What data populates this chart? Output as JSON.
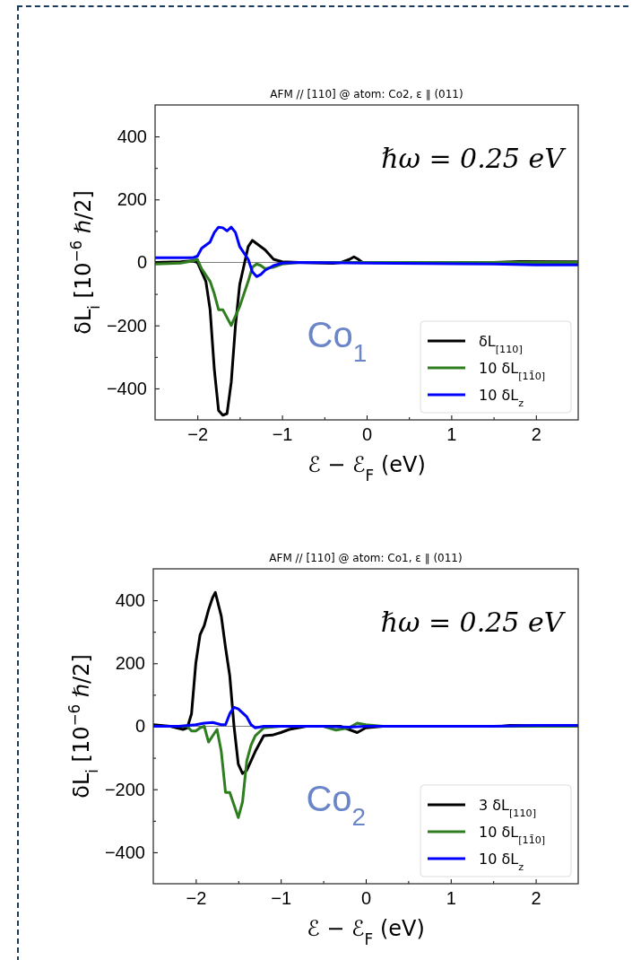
{
  "chart_data": [
    {
      "type": "line",
      "title": "AFM // [110] @ atom: Co2, ε ∥ (011)",
      "xlabel": "ℰ − ℰ$_{F}$ (eV)",
      "ylabel": "δL$_{i}$  [10$^{−6}$ ℏ/2]",
      "xlim": [
        -2.5,
        2.5
      ],
      "ylim": [
        -500,
        500
      ],
      "xticks": [
        {
          "value": -2,
          "label": "−2"
        },
        {
          "value": -1.5,
          "label": null
        },
        {
          "value": -1,
          "label": "−1"
        },
        {
          "value": -0.5,
          "label": null
        },
        0,
        {
          "value": 0.5,
          "label": null
        },
        1,
        {
          "value": 1.5,
          "label": null
        },
        2
      ],
      "yticks": [
        {
          "value": -400,
          "label": "−400"
        },
        {
          "value": -300,
          "label": null
        },
        {
          "value": -200,
          "label": "−200"
        },
        {
          "value": -100,
          "label": null
        },
        0,
        {
          "value": 100,
          "label": null
        },
        200,
        {
          "value": 300,
          "label": null
        },
        400
      ],
      "grid": false,
      "legend": "bottom right",
      "line_style": "solid",
      "marker": "none",
      "ref_lines": [
        {
          "axis": "y",
          "value": 0,
          "color": "#808080"
        }
      ],
      "annotations": [
        "ℏω = 0.25 eV",
        "Co$_{1}$"
      ],
      "series": [
        {
          "name": "δL$_{[110]}$",
          "color": "#000000",
          "x": [
            -2.5,
            -2.2,
            -2.05,
            -2.0,
            -1.9,
            -1.85,
            -1.8,
            -1.75,
            -1.7,
            -1.65,
            -1.6,
            -1.55,
            -1.5,
            -1.45,
            -1.4,
            -1.35,
            -1.3,
            -1.2,
            -1.1,
            -1.0,
            -0.8,
            -0.4,
            -0.3,
            -0.2,
            -0.15,
            -0.1,
            -0.05,
            0,
            1.5,
            1.8,
            2.5
          ],
          "values": [
            0,
            2,
            5,
            0,
            -60,
            -150,
            -340,
            -470,
            -485,
            -480,
            -380,
            -200,
            -70,
            -10,
            50,
            70,
            60,
            40,
            10,
            2,
            0,
            -3,
            0,
            10,
            18,
            10,
            0,
            0,
            0,
            3,
            2
          ]
        },
        {
          "name": "10 δL$_{[11̄0]}$",
          "color": "#2e7d1f",
          "x": [
            -2.5,
            -2.2,
            -2.05,
            -2.0,
            -1.95,
            -1.85,
            -1.8,
            -1.75,
            -1.7,
            -1.6,
            -1.5,
            -1.4,
            -1.35,
            -1.3,
            -1.25,
            -1.2,
            -1.1,
            -1.0,
            -0.8,
            0,
            2.5
          ],
          "values": [
            -5,
            -2,
            5,
            10,
            -20,
            -60,
            -100,
            -150,
            -150,
            -200,
            -140,
            -60,
            -15,
            -5,
            -10,
            -20,
            -15,
            -5,
            0,
            0,
            0
          ]
        },
        {
          "name": "10 δL$_{z}$",
          "color": "#0000ff",
          "x": [
            -2.5,
            -2.05,
            -2.0,
            -1.95,
            -1.85,
            -1.8,
            -1.75,
            -1.7,
            -1.65,
            -1.6,
            -1.55,
            -1.5,
            -1.4,
            -1.35,
            -1.3,
            -1.25,
            -1.2,
            -1.1,
            -1.0,
            -0.8,
            0,
            1.5,
            2.0,
            2.5
          ],
          "values": [
            15,
            15,
            20,
            45,
            65,
            95,
            112,
            110,
            100,
            112,
            95,
            50,
            10,
            -30,
            -45,
            -38,
            -25,
            -10,
            -2,
            0,
            -2,
            -5,
            -8,
            -8
          ]
        }
      ]
    },
    {
      "type": "line",
      "title": "AFM // [110] @ atom: Co1, ε ∥ (011)",
      "xlabel": "ℰ − ℰ$_{F}$ (eV)",
      "ylabel": "δL$_{i}$  [10$^{−6}$ ℏ/2]",
      "xlim": [
        -2.5,
        2.5
      ],
      "ylim": [
        -500,
        500
      ],
      "xticks": [
        {
          "value": -2,
          "label": "−2"
        },
        {
          "value": -1.5,
          "label": null
        },
        {
          "value": -1,
          "label": "−1"
        },
        {
          "value": -0.5,
          "label": null
        },
        0,
        {
          "value": 0.5,
          "label": null
        },
        1,
        {
          "value": 1.5,
          "label": null
        },
        2
      ],
      "yticks": [
        {
          "value": -400,
          "label": "−400"
        },
        {
          "value": -300,
          "label": null
        },
        {
          "value": -200,
          "label": "−200"
        },
        {
          "value": -100,
          "label": null
        },
        0,
        {
          "value": 100,
          "label": null
        },
        200,
        {
          "value": 300,
          "label": null
        },
        400
      ],
      "grid": false,
      "legend": "bottom right",
      "line_style": "solid",
      "marker": "none",
      "ref_lines": [
        {
          "axis": "y",
          "value": 0,
          "color": "#808080"
        }
      ],
      "annotations": [
        "ℏω = 0.25 eV",
        "Co$_{2}$"
      ],
      "series": [
        {
          "name": "3 δL$_{[110]}$",
          "color": "#000000",
          "x": [
            -2.5,
            -2.3,
            -2.15,
            -2.1,
            -2.05,
            -2.0,
            -1.95,
            -1.9,
            -1.85,
            -1.8,
            -1.77,
            -1.7,
            -1.65,
            -1.6,
            -1.55,
            -1.5,
            -1.45,
            -1.4,
            -1.3,
            -1.2,
            -1.1,
            -1.0,
            -0.9,
            -0.7,
            -0.3,
            -0.1,
            0,
            0.2,
            1.6,
            1.7,
            2.5
          ],
          "values": [
            5,
            0,
            -10,
            -5,
            40,
            200,
            290,
            320,
            370,
            410,
            425,
            350,
            250,
            160,
            0,
            -120,
            -150,
            -140,
            -80,
            -30,
            -28,
            -20,
            -10,
            0,
            0,
            -20,
            -5,
            0,
            0,
            3,
            0
          ]
        },
        {
          "name": "10 δL$_{[11̄0]}$",
          "color": "#2e7d1f",
          "x": [
            -2.5,
            -2.1,
            -2.05,
            -2.0,
            -1.95,
            -1.9,
            -1.85,
            -1.8,
            -1.75,
            -1.7,
            -1.65,
            -1.6,
            -1.55,
            -1.5,
            -1.45,
            -1.4,
            -1.35,
            -1.3,
            -1.2,
            -1.0,
            -0.5,
            -0.35,
            -0.2,
            -0.1,
            0,
            0.2,
            2.5
          ],
          "values": [
            0,
            0,
            -15,
            -15,
            -5,
            0,
            -50,
            -30,
            -10,
            -80,
            -210,
            -210,
            -250,
            -290,
            -240,
            -110,
            -60,
            -30,
            -5,
            0,
            0,
            -12,
            -5,
            10,
            5,
            0,
            0
          ]
        },
        {
          "name": "10 δL$_{z}$",
          "color": "#0000ff",
          "x": [
            -2.5,
            -2.2,
            -2.0,
            -1.9,
            -1.8,
            -1.7,
            -1.65,
            -1.6,
            -1.55,
            -1.5,
            -1.4,
            -1.35,
            -1.3,
            -1.2,
            -0.5,
            -0.2,
            0,
            1.5,
            2.0,
            2.5
          ],
          "values": [
            0,
            0,
            5,
            10,
            12,
            5,
            5,
            40,
            60,
            55,
            30,
            5,
            -5,
            0,
            0,
            -3,
            0,
            0,
            3,
            3
          ]
        }
      ]
    }
  ]
}
